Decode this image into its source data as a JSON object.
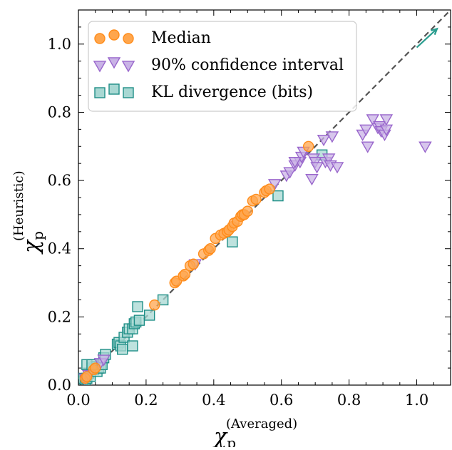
{
  "chart_data": {
    "type": "scatter",
    "xlabel": {
      "symbol": "χ",
      "subscript": "p",
      "superscript": "(Averaged)"
    },
    "ylabel": {
      "symbol": "χ",
      "subscript": "p",
      "superscript": "(Heuristic)"
    },
    "xlim": [
      0,
      1.1
    ],
    "ylim": [
      0,
      1.1
    ],
    "x_ticks": [
      "0.0",
      "0.2",
      "0.4",
      "0.6",
      "0.8",
      "1.0"
    ],
    "y_ticks": [
      "0.0",
      "0.2",
      "0.4",
      "0.6",
      "0.8",
      "1.0"
    ],
    "tick_values": [
      0,
      0.2,
      0.4,
      0.6,
      0.8,
      1.0
    ],
    "legend_position": "top-left",
    "reference_line": {
      "style": "dashed",
      "from": [
        0,
        0
      ],
      "to": [
        1.1,
        1.1
      ],
      "color": "#555555"
    },
    "arrow": {
      "from": [
        1.0,
        0.99
      ],
      "to": [
        1.06,
        1.045
      ],
      "color": "#2a9d8f"
    },
    "series": [
      {
        "name": "Median",
        "marker": "circle",
        "fill": "#ffa64d",
        "edge": "#ff8c1a",
        "points": [
          [
            0.02,
            0.02
          ],
          [
            0.025,
            0.025
          ],
          [
            0.045,
            0.045
          ],
          [
            0.05,
            0.05
          ],
          [
            0.225,
            0.235
          ],
          [
            0.285,
            0.3
          ],
          [
            0.29,
            0.305
          ],
          [
            0.31,
            0.32
          ],
          [
            0.315,
            0.325
          ],
          [
            0.33,
            0.35
          ],
          [
            0.34,
            0.355
          ],
          [
            0.37,
            0.385
          ],
          [
            0.385,
            0.395
          ],
          [
            0.39,
            0.4
          ],
          [
            0.405,
            0.43
          ],
          [
            0.42,
            0.44
          ],
          [
            0.43,
            0.445
          ],
          [
            0.44,
            0.45
          ],
          [
            0.445,
            0.455
          ],
          [
            0.455,
            0.465
          ],
          [
            0.46,
            0.475
          ],
          [
            0.47,
            0.48
          ],
          [
            0.48,
            0.495
          ],
          [
            0.485,
            0.5
          ],
          [
            0.49,
            0.5
          ],
          [
            0.5,
            0.51
          ],
          [
            0.515,
            0.54
          ],
          [
            0.525,
            0.545
          ],
          [
            0.55,
            0.565
          ],
          [
            0.555,
            0.57
          ],
          [
            0.565,
            0.575
          ],
          [
            0.68,
            0.7
          ]
        ]
      },
      {
        "name": "90% confidence interval",
        "marker": "triangle-down",
        "fill": "#c9b3e6",
        "edge": "#9966cc",
        "points": [
          [
            0.02,
            0.02
          ],
          [
            0.03,
            0.03
          ],
          [
            0.065,
            0.065
          ],
          [
            0.075,
            0.075
          ],
          [
            0.345,
            0.355
          ],
          [
            0.58,
            0.59
          ],
          [
            0.615,
            0.615
          ],
          [
            0.625,
            0.625
          ],
          [
            0.64,
            0.645
          ],
          [
            0.655,
            0.655
          ],
          [
            0.66,
            0.67
          ],
          [
            0.665,
            0.685
          ],
          [
            0.64,
            0.655
          ],
          [
            0.695,
            0.665
          ],
          [
            0.7,
            0.655
          ],
          [
            0.705,
            0.64
          ],
          [
            0.69,
            0.605
          ],
          [
            0.73,
            0.655
          ],
          [
            0.74,
            0.665
          ],
          [
            0.745,
            0.645
          ],
          [
            0.765,
            0.64
          ],
          [
            0.725,
            0.72
          ],
          [
            0.75,
            0.73
          ],
          [
            0.84,
            0.735
          ],
          [
            0.855,
            0.7
          ],
          [
            0.85,
            0.75
          ],
          [
            0.87,
            0.78
          ],
          [
            0.885,
            0.755
          ],
          [
            0.89,
            0.76
          ],
          [
            0.895,
            0.745
          ],
          [
            0.905,
            0.735
          ],
          [
            0.91,
            0.78
          ],
          [
            0.91,
            0.75
          ],
          [
            1.025,
            0.7
          ]
        ]
      },
      {
        "name": "KL divergence (bits)",
        "marker": "square",
        "fill": "#a8d8d3",
        "edge": "#1f8f87",
        "points": [
          [
            0.008,
            0.008
          ],
          [
            0.012,
            0.012
          ],
          [
            0.015,
            0.02
          ],
          [
            0.02,
            0.015
          ],
          [
            0.025,
            0.02
          ],
          [
            0.03,
            0.035
          ],
          [
            0.035,
            0.025
          ],
          [
            0.04,
            0.05
          ],
          [
            0.045,
            0.045
          ],
          [
            0.05,
            0.055
          ],
          [
            0.055,
            0.04
          ],
          [
            0.06,
            0.05
          ],
          [
            0.065,
            0.05
          ],
          [
            0.07,
            0.06
          ],
          [
            0.075,
            0.08
          ],
          [
            0.08,
            0.09
          ],
          [
            0.025,
            0.06
          ],
          [
            0.04,
            0.06
          ],
          [
            0.115,
            0.12
          ],
          [
            0.12,
            0.125
          ],
          [
            0.125,
            0.115
          ],
          [
            0.13,
            0.105
          ],
          [
            0.135,
            0.14
          ],
          [
            0.145,
            0.155
          ],
          [
            0.15,
            0.165
          ],
          [
            0.16,
            0.165
          ],
          [
            0.165,
            0.18
          ],
          [
            0.17,
            0.185
          ],
          [
            0.175,
            0.23
          ],
          [
            0.18,
            0.19
          ],
          [
            0.16,
            0.115
          ],
          [
            0.21,
            0.205
          ],
          [
            0.25,
            0.25
          ],
          [
            0.455,
            0.42
          ],
          [
            0.59,
            0.555
          ],
          [
            0.72,
            0.675
          ]
        ]
      }
    ]
  }
}
